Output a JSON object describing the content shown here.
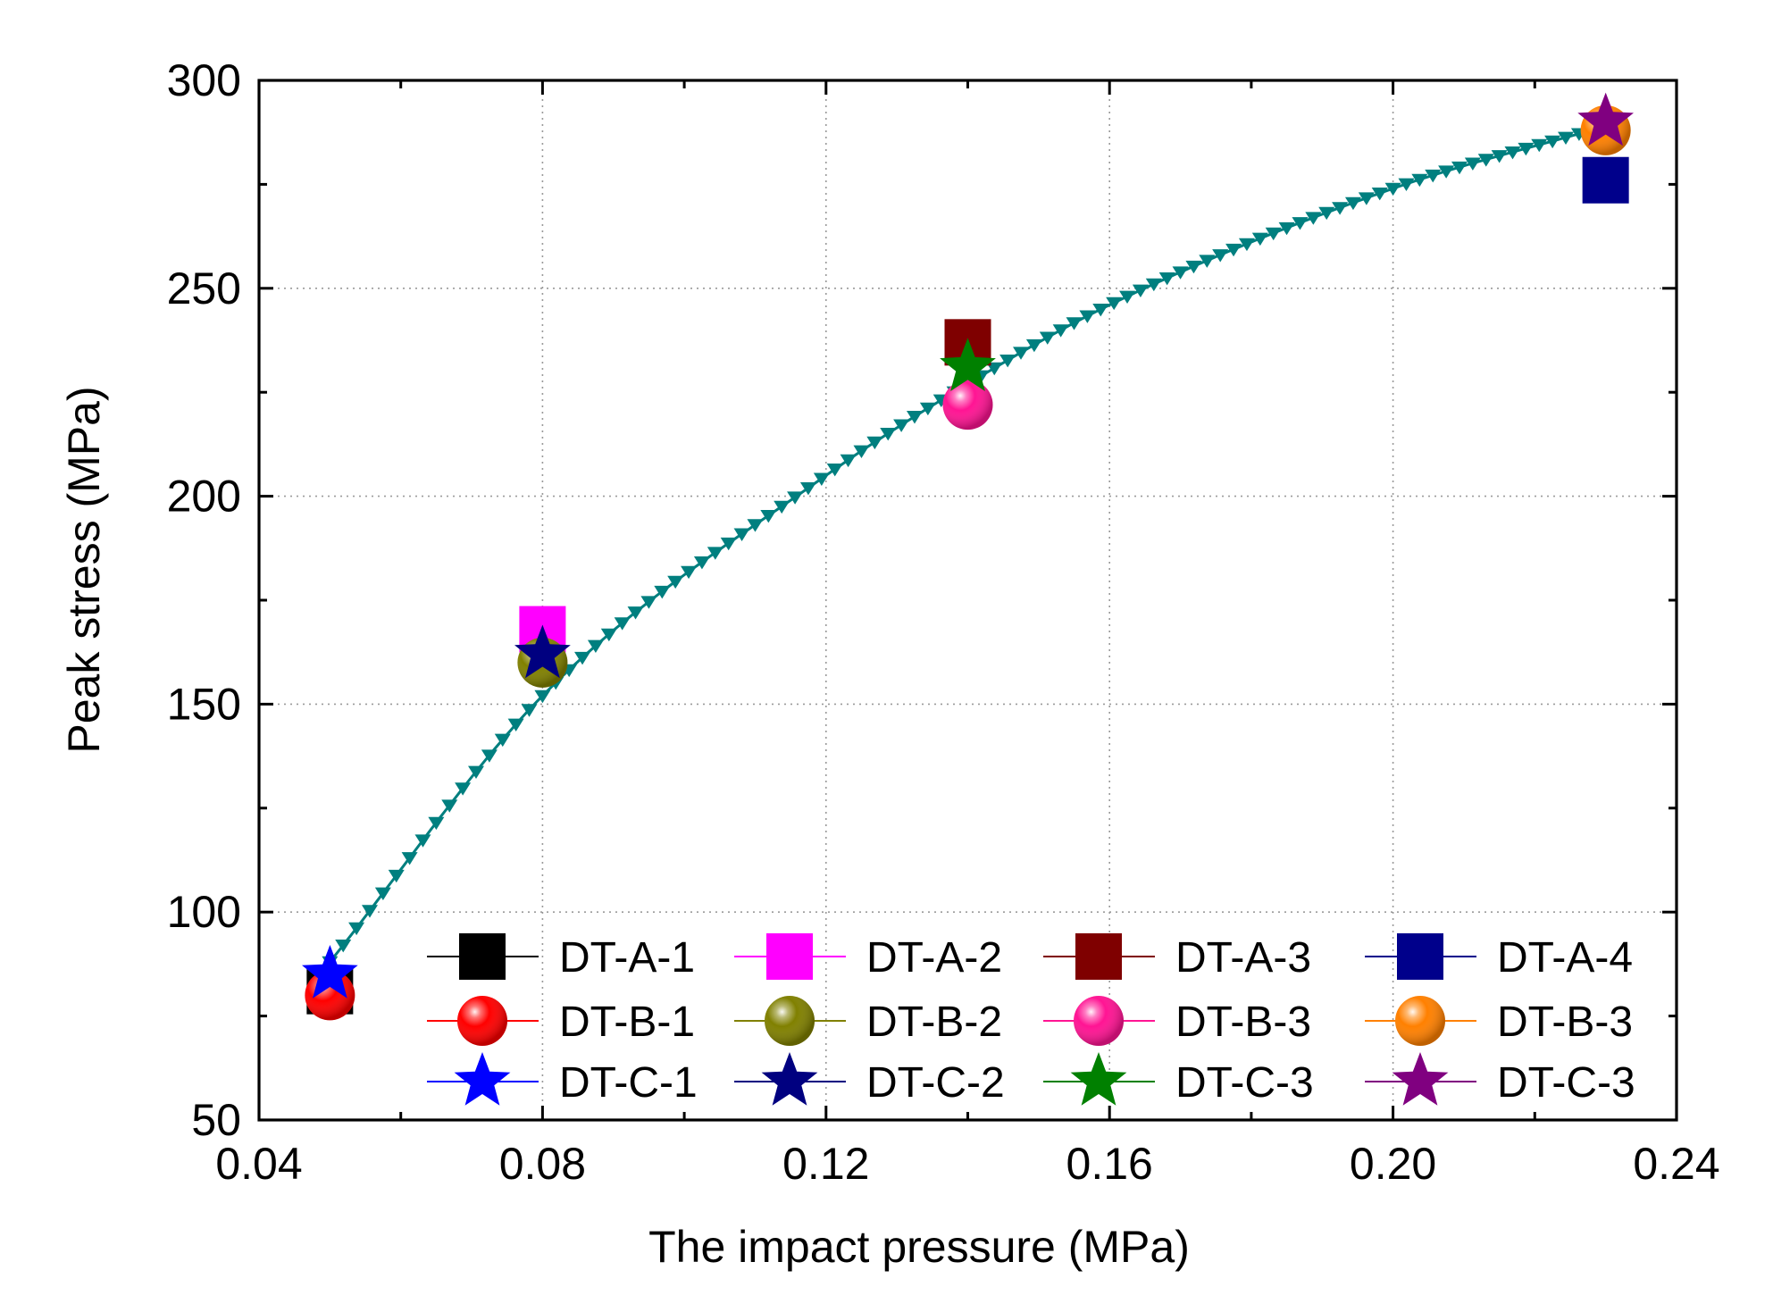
{
  "chart_data": {
    "type": "scatter",
    "title": "",
    "xlabel": "The impact pressure (MPa)",
    "ylabel": "Peak stress (MPa)",
    "xlim": [
      0.04,
      0.24
    ],
    "ylim": [
      50,
      300
    ],
    "xticks": [
      0.04,
      0.08,
      0.12,
      0.16,
      0.2,
      0.24
    ],
    "xtick_labels": [
      "0.04",
      "0.08",
      "0.12",
      "0.16",
      "0.20",
      "0.24"
    ],
    "yticks": [
      50,
      100,
      150,
      200,
      250,
      300
    ],
    "ytick_labels": [
      "50",
      "100",
      "150",
      "200",
      "250",
      "300"
    ],
    "grid": true,
    "legend_position": "bottom-right",
    "series": [
      {
        "name": "DT-A-1",
        "marker": "square",
        "color": "#000000",
        "x": [
          0.05
        ],
        "y": [
          81
        ]
      },
      {
        "name": "DT-A-2",
        "marker": "square",
        "color": "#ff00ff",
        "x": [
          0.08
        ],
        "y": [
          168
        ]
      },
      {
        "name": "DT-A-3",
        "marker": "square",
        "color": "#7f0000",
        "x": [
          0.14
        ],
        "y": [
          237
        ]
      },
      {
        "name": "DT-A-4",
        "marker": "square",
        "color": "#00008b",
        "x": [
          0.23
        ],
        "y": [
          276
        ]
      },
      {
        "name": "DT-B-1",
        "marker": "sphere",
        "color": "#ff0000",
        "x": [
          0.05
        ],
        "y": [
          80
        ]
      },
      {
        "name": "DT-B-2",
        "marker": "sphere",
        "color": "#808000",
        "x": [
          0.08
        ],
        "y": [
          160
        ]
      },
      {
        "name": "DT-B-3",
        "marker": "sphere",
        "color": "#ff1493",
        "x": [
          0.14
        ],
        "y": [
          222
        ]
      },
      {
        "name": "DT-B-3",
        "marker": "sphere",
        "color": "#ff8000",
        "x": [
          0.23
        ],
        "y": [
          288
        ]
      },
      {
        "name": "DT-C-1",
        "marker": "star",
        "color": "#0000ff",
        "x": [
          0.05
        ],
        "y": [
          85
        ]
      },
      {
        "name": "DT-C-2",
        "marker": "star",
        "color": "#000080",
        "x": [
          0.08
        ],
        "y": [
          162
        ]
      },
      {
        "name": "DT-C-3",
        "marker": "star",
        "color": "#008000",
        "x": [
          0.14
        ],
        "y": [
          231
        ]
      },
      {
        "name": "DT-C-3",
        "marker": "star",
        "color": "#800080",
        "x": [
          0.23
        ],
        "y": [
          290
        ]
      }
    ],
    "fit_curve": {
      "color": "#007f7f",
      "marker": "triangle-down",
      "x_start": 0.05,
      "x_end": 0.23,
      "points": [
        [
          0.05,
          88
        ],
        [
          0.08,
          152
        ],
        [
          0.12,
          205
        ],
        [
          0.14,
          227
        ],
        [
          0.16,
          246
        ],
        [
          0.2,
          274
        ],
        [
          0.23,
          289
        ]
      ]
    }
  }
}
